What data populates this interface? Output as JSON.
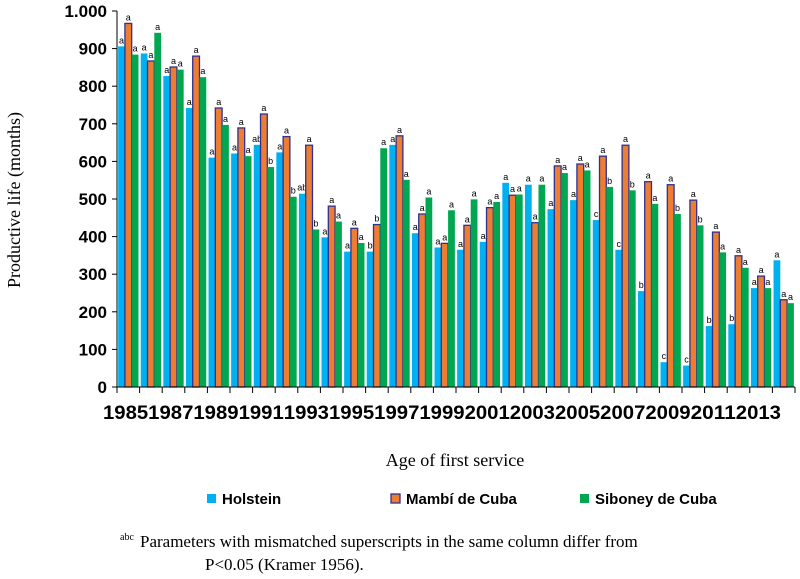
{
  "chart_data": {
    "type": "bar",
    "title": "",
    "xlabel": "Age of first service",
    "ylabel": "Productive life (months)",
    "ylim": [
      0,
      1000
    ],
    "yticks": [
      0,
      100,
      200,
      300,
      400,
      500,
      600,
      700,
      800,
      900,
      1000
    ],
    "ytick_labels": [
      "0",
      "100",
      "200",
      "300",
      "400",
      "500",
      "600",
      "700",
      "800",
      "900",
      "1.000"
    ],
    "grid": false,
    "legend_position": "bottom",
    "categories": [
      1985,
      1986,
      1987,
      1988,
      1989,
      1990,
      1991,
      1992,
      1993,
      1994,
      1995,
      1996,
      1997,
      1998,
      1999,
      2000,
      2001,
      2002,
      2003,
      2004,
      2005,
      2006,
      2007,
      2008,
      2009,
      2010,
      2011,
      2012,
      2013,
      2014
    ],
    "xtick_labels": [
      "1985",
      "1987",
      "1989",
      "1991",
      "1993",
      "1995",
      "1997",
      "1999",
      "2001",
      "2003",
      "2005",
      "2007",
      "2009",
      "2011",
      "2013"
    ],
    "series": [
      {
        "name": "Holstein",
        "color": "#00B0F0",
        "values": [
          906,
          887,
          827,
          742,
          610,
          621,
          644,
          624,
          514,
          398,
          360,
          360,
          644,
          409,
          371,
          365,
          386,
          543,
          538,
          473,
          497,
          444,
          365,
          255,
          66,
          57,
          162,
          167,
          263,
          337
        ],
        "superscripts": [
          "a",
          "a",
          "a",
          "a",
          "a",
          "a",
          "ab",
          "a",
          "ab",
          "a",
          "a",
          "b",
          "a",
          "a",
          "a",
          "a",
          "a",
          "a",
          "a",
          "a",
          "a",
          "c",
          "c",
          "b",
          "c",
          "c",
          "b",
          "b",
          "a",
          "a"
        ]
      },
      {
        "name": "Mambí de Cuba",
        "color": "#ED7D31",
        "outline": "#2E3192",
        "values": [
          967,
          867,
          851,
          880,
          742,
          689,
          726,
          666,
          643,
          481,
          422,
          432,
          668,
          460,
          382,
          430,
          477,
          510,
          437,
          588,
          593,
          614,
          643,
          546,
          538,
          497,
          412,
          349,
          295,
          232
        ],
        "superscripts": [
          "a",
          "a",
          "a",
          "a",
          "a",
          "a",
          "a",
          "a",
          "a",
          "a",
          "a",
          "b",
          "a",
          "a",
          "a",
          "a",
          "a",
          "a",
          "a",
          "a",
          "a",
          "a",
          "a",
          "a",
          "a",
          "a",
          "a",
          "a",
          "a",
          "a"
        ]
      },
      {
        "name": "Siboney de Cuba",
        "color": "#00A650",
        "values": [
          884,
          942,
          844,
          824,
          697,
          614,
          585,
          506,
          419,
          440,
          383,
          635,
          551,
          504,
          470,
          499,
          492,
          512,
          538,
          569,
          576,
          532,
          523,
          487,
          460,
          430,
          358,
          317,
          263,
          223
        ],
        "superscripts": [
          "a",
          "a",
          "a",
          "a",
          "a",
          "a",
          "b",
          "b",
          "b",
          "a",
          "a",
          "a",
          "a",
          "a",
          "a",
          "a",
          "a",
          "a",
          "a",
          "a",
          "a",
          "b",
          "b",
          "a",
          "b",
          "b",
          "a",
          "a",
          "a",
          "a"
        ]
      }
    ]
  },
  "footnote": {
    "superscript": "abc",
    "line1": "Parameters with mismatched superscripts in the same column differ from",
    "line2": "P<0.05 (Kramer 1956)."
  }
}
